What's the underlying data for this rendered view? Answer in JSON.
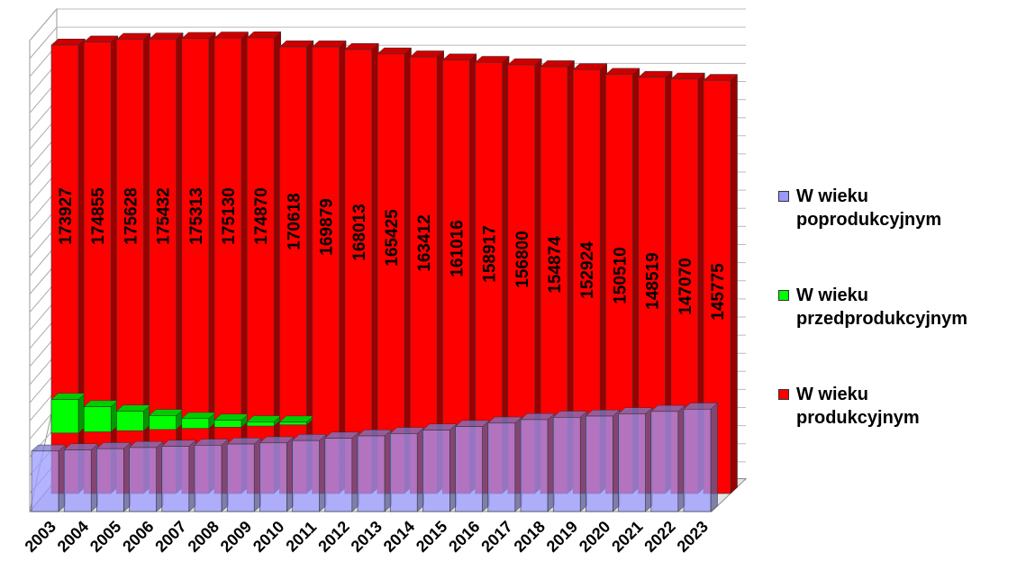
{
  "chart_data": {
    "type": "bar",
    "stacked": true,
    "three_d": true,
    "categories": [
      "2003",
      "2004",
      "2005",
      "2006",
      "2007",
      "2008",
      "2009",
      "2010",
      "2011",
      "2012",
      "2013",
      "2014",
      "2015",
      "2016",
      "2017",
      "2018",
      "2019",
      "2020",
      "2021",
      "2022",
      "2023"
    ],
    "series": [
      {
        "name": "W wieku poprodukcyjnym",
        "color": "#9999ff",
        "values": [
          26000,
          26500,
          27000,
          27500,
          28000,
          28500,
          29000,
          29500,
          30500,
          31500,
          32500,
          33500,
          35000,
          36500,
          38000,
          39500,
          40500,
          41000,
          42000,
          43000,
          44000
        ]
      },
      {
        "name": "W wieku przedprodukcyjnym",
        "color": "#00ff00",
        "values": [
          1200,
          900,
          700,
          500,
          350,
          250,
          150,
          100,
          0,
          0,
          0,
          0,
          0,
          0,
          0,
          0,
          0,
          0,
          0,
          0,
          0
        ]
      },
      {
        "name": "W wieku produkcyjnym",
        "color": "#ff0000",
        "values": [
          173927,
          174855,
          175628,
          175432,
          175313,
          175130,
          174870,
          170618,
          169879,
          168013,
          165425,
          163412,
          161016,
          158917,
          156800,
          154874,
          152924,
          150510,
          148519,
          147070,
          145775
        ],
        "labels": [
          "173927",
          "174855",
          "175628",
          "175432",
          "175313",
          "175130",
          "174870",
          "170618",
          "169879",
          "168013",
          "165425",
          "163412",
          "161016",
          "158917",
          "156800",
          "154874",
          "152924",
          "150510",
          "148519",
          "147070",
          "145775"
        ]
      }
    ],
    "grid": true,
    "legend": "right"
  },
  "legend": {
    "items": [
      {
        "line1": "W wieku",
        "line2": "poprodukcyjnym",
        "color": "#9999ff"
      },
      {
        "line1": "W wieku",
        "line2": "przedprodukcyjnym",
        "color": "#00ff00"
      },
      {
        "line1": "W wieku",
        "line2": "produkcyjnym",
        "color": "#ff0000"
      }
    ]
  }
}
